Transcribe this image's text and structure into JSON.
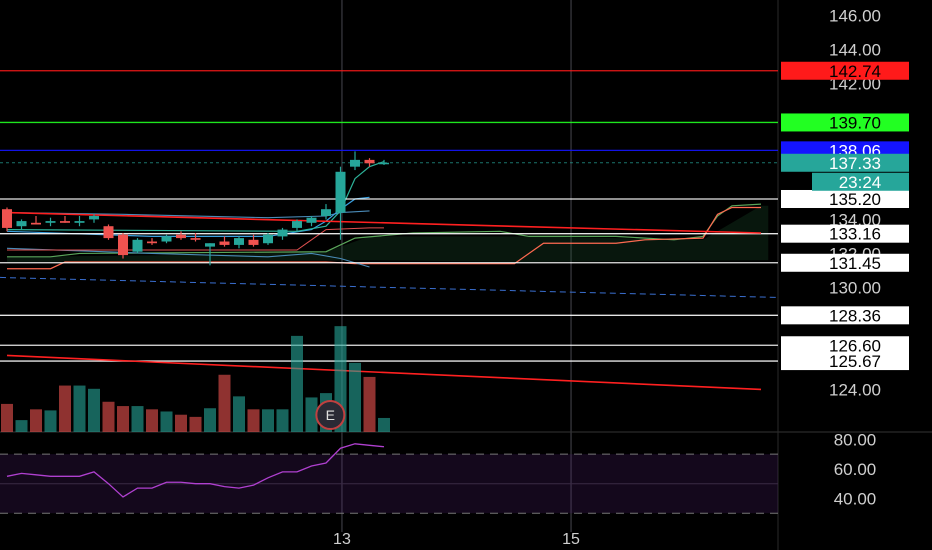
{
  "chart_data": {
    "type": "candlestick",
    "price_axis": {
      "range": [
        121.5,
        146.9
      ],
      "ticks": [
        "146.00",
        "144.00",
        "142.00",
        "134.00",
        "132.00",
        "130.00",
        "124.00"
      ]
    },
    "price_labels": [
      {
        "value": 142.74,
        "text": "142.74",
        "color": "#ff1a1a",
        "text_color": "#000000"
      },
      {
        "value": 139.7,
        "text": "139.70",
        "color": "#22ff22",
        "text_color": "#000000"
      },
      {
        "value": 138.06,
        "text": "138.06",
        "color": "#1414ff",
        "text_color": "#ffffff"
      },
      {
        "value": 137.33,
        "text": "137.33",
        "color": "#26a69a",
        "text_color": "#ffffff"
      },
      {
        "value": 135.2,
        "text": "135.20",
        "color": "#ffffff",
        "text_color": "#000000"
      },
      {
        "value": 133.16,
        "text": "133.16",
        "color": "#ffffff",
        "text_color": "#000000"
      },
      {
        "value": 131.45,
        "text": "131.45",
        "color": "#ffffff",
        "text_color": "#000000"
      },
      {
        "value": 128.36,
        "text": "128.36",
        "color": "#ffffff",
        "text_color": "#000000"
      },
      {
        "value": 126.6,
        "text": "126.60",
        "color": "#ffffff",
        "text_color": "#000000"
      },
      {
        "value": 125.67,
        "text": "125.67",
        "color": "#ffffff",
        "text_color": "#000000"
      }
    ],
    "countdown": "23:24",
    "candles": [
      {
        "o": 134.6,
        "h": 134.7,
        "l": 133.3,
        "c": 133.5
      },
      {
        "o": 133.6,
        "h": 134.0,
        "l": 133.4,
        "c": 133.9
      },
      {
        "o": 133.8,
        "h": 134.2,
        "l": 133.7,
        "c": 133.7
      },
      {
        "o": 133.8,
        "h": 134.1,
        "l": 133.6,
        "c": 133.9
      },
      {
        "o": 133.9,
        "h": 134.2,
        "l": 133.8,
        "c": 133.8
      },
      {
        "o": 133.8,
        "h": 134.2,
        "l": 133.6,
        "c": 133.9
      },
      {
        "o": 134.0,
        "h": 134.3,
        "l": 133.8,
        "c": 134.2
      },
      {
        "o": 133.6,
        "h": 133.7,
        "l": 132.8,
        "c": 132.9
      },
      {
        "o": 133.1,
        "h": 133.2,
        "l": 131.7,
        "c": 131.9
      },
      {
        "o": 132.1,
        "h": 132.9,
        "l": 132.0,
        "c": 132.8
      },
      {
        "o": 132.7,
        "h": 132.9,
        "l": 132.5,
        "c": 132.6
      },
      {
        "o": 132.7,
        "h": 133.1,
        "l": 132.6,
        "c": 133.0
      },
      {
        "o": 133.1,
        "h": 133.3,
        "l": 132.8,
        "c": 132.9
      },
      {
        "o": 132.9,
        "h": 133.2,
        "l": 132.7,
        "c": 132.8
      },
      {
        "o": 132.4,
        "h": 132.6,
        "l": 131.3,
        "c": 132.6
      },
      {
        "o": 132.7,
        "h": 133.0,
        "l": 132.4,
        "c": 132.5
      },
      {
        "o": 132.5,
        "h": 133.0,
        "l": 132.3,
        "c": 132.9
      },
      {
        "o": 132.8,
        "h": 133.1,
        "l": 132.4,
        "c": 132.5
      },
      {
        "o": 132.6,
        "h": 133.2,
        "l": 132.5,
        "c": 133.1
      },
      {
        "o": 133.0,
        "h": 133.5,
        "l": 132.8,
        "c": 133.4
      },
      {
        "o": 133.5,
        "h": 134.0,
        "l": 133.3,
        "c": 133.9
      },
      {
        "o": 133.8,
        "h": 134.2,
        "l": 133.6,
        "c": 134.1
      },
      {
        "o": 134.2,
        "h": 134.9,
        "l": 134.0,
        "c": 134.6
      },
      {
        "o": 134.4,
        "h": 137.1,
        "l": 132.8,
        "c": 136.8
      },
      {
        "o": 137.1,
        "h": 138.0,
        "l": 136.9,
        "c": 137.5
      },
      {
        "o": 137.5,
        "h": 137.6,
        "l": 137.1,
        "c": 137.3
      },
      {
        "o": 137.3,
        "h": 137.5,
        "l": 137.2,
        "c": 137.33
      }
    ],
    "trendlines": [
      {
        "from": [
          0,
          134.4
        ],
        "to": [
          52,
          133.2
        ],
        "color": "#ff2020"
      },
      {
        "from": [
          0,
          126.0
        ],
        "to": [
          52,
          124.0
        ],
        "color": "#ff2020"
      }
    ],
    "x_labels": [
      {
        "bar": 23.1,
        "text": "13"
      },
      {
        "bar": 38.9,
        "text": "15"
      }
    ],
    "volume": {
      "max": 100,
      "bars": [
        26,
        11,
        21,
        20,
        43,
        43,
        40,
        28,
        24,
        24,
        21,
        19,
        16,
        14,
        22,
        53,
        33,
        21,
        21,
        21,
        89,
        32,
        36,
        98,
        64,
        51,
        13
      ],
      "earnings_marker": "E"
    },
    "rsi": {
      "range": [
        20,
        85
      ],
      "ticks": [
        "80.00",
        "60.00",
        "40.00"
      ],
      "levels": [
        70,
        30
      ],
      "values": [
        55,
        57,
        56,
        55,
        55,
        55,
        58,
        50,
        41,
        47,
        47,
        51,
        51,
        50,
        50,
        48,
        47,
        49,
        54,
        58,
        58,
        62,
        64,
        74,
        77,
        76,
        75
      ]
    }
  }
}
